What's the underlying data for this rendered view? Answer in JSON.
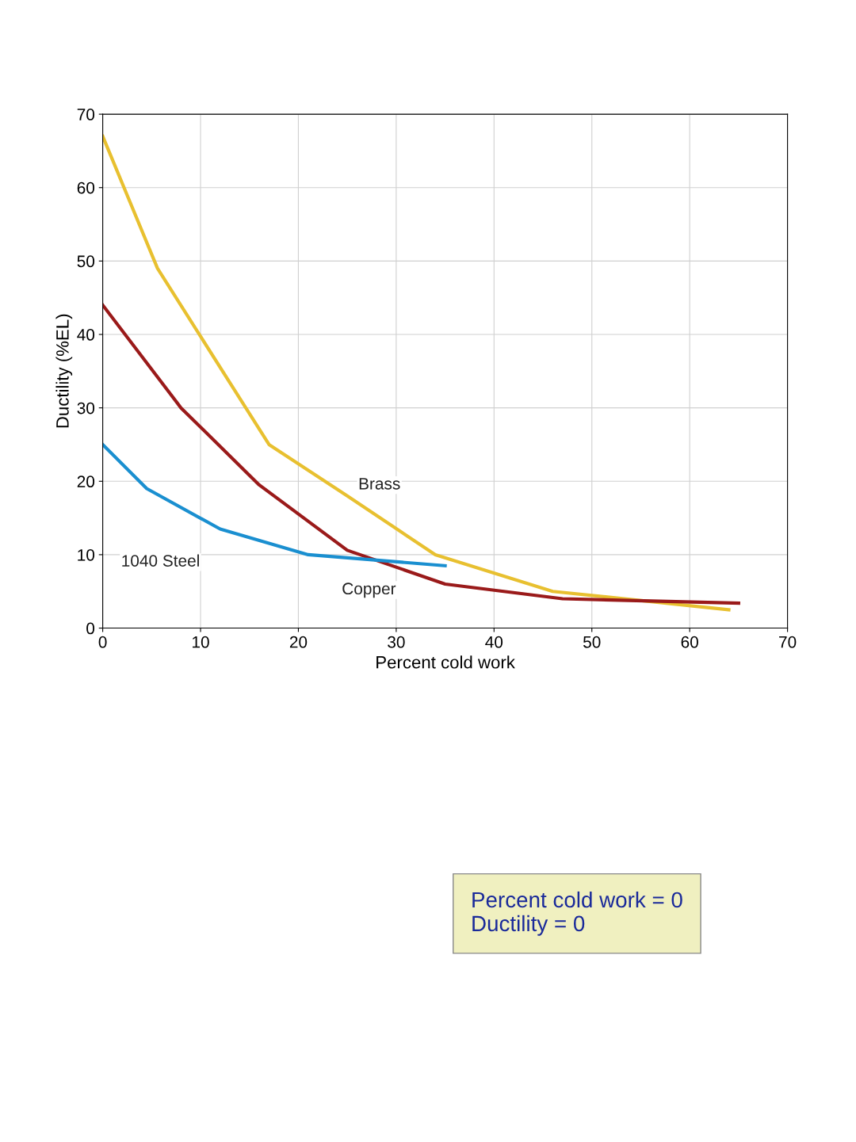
{
  "chart_data": {
    "type": "line",
    "xlabel": "Percent cold work",
    "ylabel": "Ductility (%EL)",
    "xlim": [
      0,
      70
    ],
    "xticks": [
      0,
      10,
      20,
      30,
      40,
      50,
      60,
      70
    ],
    "ylim": [
      0,
      70
    ],
    "yticks": [
      0,
      10,
      20,
      30,
      40,
      50,
      60,
      70
    ],
    "grid": true,
    "legend": false,
    "marker": "none",
    "line_style": "solid",
    "series": [
      {
        "name": "Brass",
        "color": "#e8c030",
        "x": [
          0,
          5.6,
          17,
          25,
          34,
          46,
          64
        ],
        "values": [
          67,
          49,
          25,
          18,
          10,
          5,
          2.5
        ]
      },
      {
        "name": "Copper",
        "color": "#9a1a1a",
        "x": [
          0,
          8,
          16,
          25,
          35,
          47,
          65
        ],
        "values": [
          44,
          30,
          19.5,
          10.6,
          6,
          4,
          3.4
        ]
      },
      {
        "name": "1040 Steel",
        "color": "#1a8fd0",
        "x": [
          0,
          4.5,
          12,
          21,
          35
        ],
        "values": [
          25,
          19,
          13.5,
          10,
          8.5
        ]
      }
    ],
    "annotations": [
      "Percent cold work = 0",
      "Ductility = 0"
    ]
  }
}
